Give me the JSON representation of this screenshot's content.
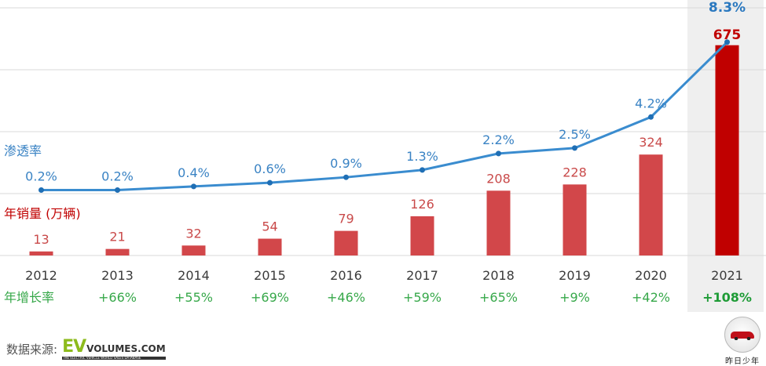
{
  "legend": {
    "penetration": "渗透率",
    "sales": "年销量 (万辆)",
    "growth": "年增长率"
  },
  "colors": {
    "bar": "#d2474a",
    "bar_highlight": "#c00000",
    "line": "#3a8ccf",
    "growth": "#37a84a",
    "highlight_band": "#efefef",
    "grid": "#d9d9d9"
  },
  "chart_data": {
    "type": "bar",
    "categories": [
      "2012",
      "2013",
      "2014",
      "2015",
      "2016",
      "2017",
      "2018",
      "2019",
      "2020",
      "2021"
    ],
    "series": [
      {
        "name": "年销量 (万辆)",
        "type": "bar",
        "values": [
          13,
          21,
          32,
          54,
          79,
          126,
          208,
          228,
          324,
          675
        ]
      },
      {
        "name": "渗透率",
        "type": "line",
        "values": [
          0.2,
          0.2,
          0.4,
          0.6,
          0.9,
          1.3,
          2.2,
          2.5,
          4.2,
          8.3
        ],
        "labels": [
          "0.2%",
          "0.2%",
          "0.4%",
          "0.6%",
          "0.9%",
          "1.3%",
          "2.2%",
          "2.5%",
          "4.2%",
          "8.3%"
        ]
      }
    ],
    "growth_labels": [
      "",
      "+66%",
      "+55%",
      "+69%",
      "+46%",
      "+59%",
      "+65%",
      "+9%",
      "+42%",
      "+108%"
    ],
    "highlight_category": "2021",
    "grid": true
  },
  "source": {
    "label": "数据来源:",
    "logo_big": "EV",
    "logo_small": "VOLUMES.COM",
    "logo_tag": "THE ELECTRIC VEHICLE WORLD SALES DATABASE"
  },
  "brand": {
    "name": "昨日少年"
  }
}
